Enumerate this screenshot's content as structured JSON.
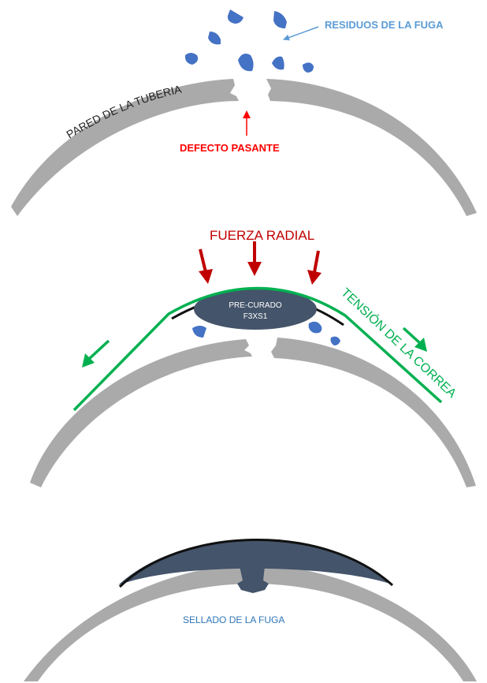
{
  "panel1": {
    "debris_label": "RESIDUOS DE LA FUGA",
    "wall_label": "PARED DE LA TUBERIA",
    "defect_label": "DEFECTO PASANTE"
  },
  "panel2": {
    "force_label": "FUERZA RADIAL",
    "patch_line1": "PRE-CURADO",
    "patch_line2": "F3XS1",
    "tension_label": "TENSIÓN DE LA CORREA"
  },
  "panel3": {
    "seal_label": "SELLADO DE LA FUGA"
  },
  "colors": {
    "pipe_wall": "#aaaaaa",
    "debris": "#4472c4",
    "patch": "#44546a",
    "defect_red": "#ff0000",
    "force_red": "#c00000",
    "belt_green": "#00b050",
    "debris_label_blue": "#5b9bd5"
  }
}
